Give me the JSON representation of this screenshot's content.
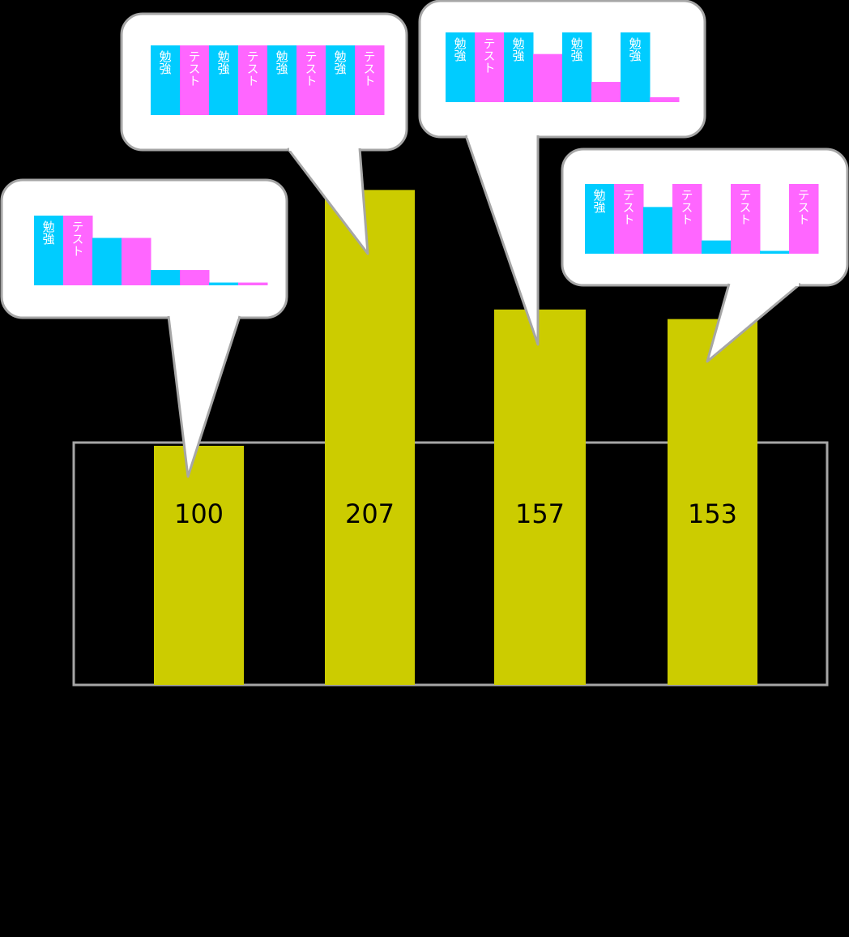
{
  "chart_data": {
    "type": "bar",
    "title": "",
    "xlabel": "",
    "ylabel": "",
    "categories": [
      "",
      "",
      "",
      ""
    ],
    "values": [
      100,
      207,
      157,
      153
    ],
    "colors": {
      "bar": "#cccc00",
      "frame": "#a6a6a6",
      "background": "#000000",
      "bubble": "#ffffff",
      "bubble_border": "#a6a6a6",
      "study": "#00ccff",
      "test": "#ff66ff",
      "value_text": "#000000"
    },
    "bubbles": [
      {
        "segments": [
          {
            "kind": "study",
            "level": 1.0,
            "label": "勉強"
          },
          {
            "kind": "test",
            "level": 1.0,
            "label": "テスト"
          },
          {
            "kind": "study",
            "level": 0.68,
            "label": ""
          },
          {
            "kind": "test",
            "level": 0.68,
            "label": ""
          },
          {
            "kind": "study",
            "level": 0.22,
            "label": ""
          },
          {
            "kind": "test",
            "level": 0.22,
            "label": ""
          },
          {
            "kind": "study",
            "level": 0.04,
            "label": ""
          },
          {
            "kind": "test",
            "level": 0.04,
            "label": ""
          }
        ]
      },
      {
        "segments": [
          {
            "kind": "study",
            "level": 1.0,
            "label": "勉強"
          },
          {
            "kind": "test",
            "level": 1.0,
            "label": "テスト"
          },
          {
            "kind": "study",
            "level": 1.0,
            "label": "勉強"
          },
          {
            "kind": "test",
            "level": 1.0,
            "label": "テスト"
          },
          {
            "kind": "study",
            "level": 1.0,
            "label": "勉強"
          },
          {
            "kind": "test",
            "level": 1.0,
            "label": "テスト"
          },
          {
            "kind": "study",
            "level": 1.0,
            "label": "勉強"
          },
          {
            "kind": "test",
            "level": 1.0,
            "label": "テスト"
          }
        ]
      },
      {
        "segments": [
          {
            "kind": "study",
            "level": 1.0,
            "label": "勉強"
          },
          {
            "kind": "test",
            "level": 1.0,
            "label": "テスト"
          },
          {
            "kind": "study",
            "level": 1.0,
            "label": "勉強"
          },
          {
            "kind": "test",
            "level": 0.69,
            "label": ""
          },
          {
            "kind": "study",
            "level": 1.0,
            "label": "勉強"
          },
          {
            "kind": "test",
            "level": 0.29,
            "label": ""
          },
          {
            "kind": "study",
            "level": 1.0,
            "label": "勉強"
          },
          {
            "kind": "test",
            "level": 0.07,
            "label": ""
          }
        ]
      },
      {
        "segments": [
          {
            "kind": "study",
            "level": 1.0,
            "label": "勉強"
          },
          {
            "kind": "test",
            "level": 1.0,
            "label": "テスト"
          },
          {
            "kind": "study",
            "level": 0.67,
            "label": ""
          },
          {
            "kind": "test",
            "level": 1.0,
            "label": "テスト"
          },
          {
            "kind": "study",
            "level": 0.19,
            "label": ""
          },
          {
            "kind": "test",
            "level": 1.0,
            "label": "テスト"
          },
          {
            "kind": "study",
            "level": 0.04,
            "label": ""
          },
          {
            "kind": "test",
            "level": 1.0,
            "label": "テスト"
          }
        ]
      }
    ]
  }
}
